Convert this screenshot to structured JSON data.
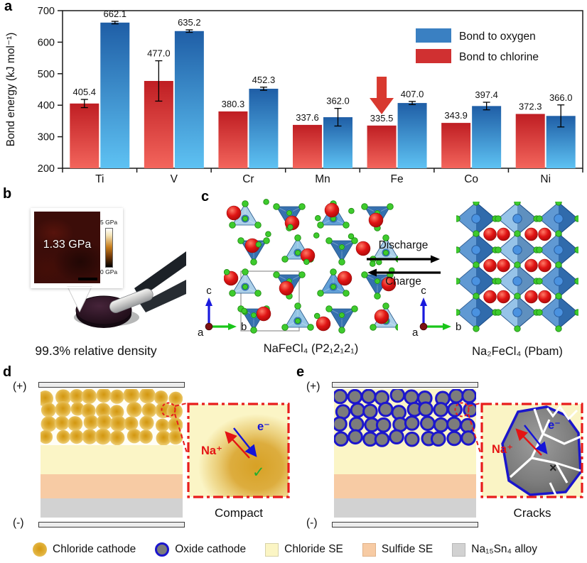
{
  "panel_labels": {
    "a": "a",
    "b": "b",
    "c": "c",
    "d": "d",
    "e": "e"
  },
  "chart_data": {
    "type": "bar",
    "title": "",
    "xlabel": "",
    "ylabel": "Bond energy (kJ mol⁻¹)",
    "ylim": [
      200,
      700
    ],
    "yticks": [
      200,
      300,
      400,
      500,
      600,
      700
    ],
    "categories": [
      "Ti",
      "V",
      "Cr",
      "Mn",
      "Fe",
      "Co",
      "Ni"
    ],
    "series": [
      {
        "name": "Bond to oxygen",
        "values": [
          662.1,
          635.2,
          452.3,
          362.0,
          407.0,
          397.4,
          366.0
        ],
        "errors": [
          4,
          4,
          5,
          28,
          5,
          12,
          35
        ],
        "legend_color": "#3a80c2",
        "bar_top": "#1f5ea6",
        "bar_bottom": "#5ec2f3"
      },
      {
        "name": "Bond to chlorine",
        "values": [
          405.4,
          477.0,
          380.3,
          337.6,
          335.5,
          343.9,
          372.3
        ],
        "errors": [
          13,
          64,
          0,
          0,
          0,
          0,
          0
        ],
        "legend_color": "#d03031",
        "bar_top": "#bf1e23",
        "bar_bottom": "#f3655c"
      }
    ],
    "annotation": {
      "type": "down-arrow",
      "category": "Fe",
      "series": "Bond to chlorine",
      "color": "#d8392f"
    },
    "legend_position": "top-right",
    "grid": false
  },
  "panel_b": {
    "inset_value": "1.33 GPa",
    "colorbar_top": "5 GPa",
    "colorbar_bottom": "0 GPa",
    "caption": "99.3% relative density"
  },
  "panel_c": {
    "discharge_label": "Discharge",
    "charge_label": "Charge",
    "left_caption": "NaFeCl₄ (P2₁2₁2₁)",
    "right_caption": "Na₂FeCl₄ (Pbam)",
    "axis": {
      "a": "a",
      "b": "b",
      "c": "c"
    }
  },
  "panel_d": {
    "positive_label": "(+)",
    "negative_label": "(-)",
    "ion_label": "Na⁺",
    "electron_label": "e⁻",
    "status_mark": "✓",
    "caption": "Compact"
  },
  "panel_e": {
    "positive_label": "(+)",
    "negative_label": "(-)",
    "ion_label": "Na⁺",
    "electron_label": "e⁻",
    "status_mark": "×",
    "caption": "Cracks"
  },
  "legend": {
    "items": [
      {
        "label": "Chloride cathode",
        "swatch": "gold-circle"
      },
      {
        "label": "Oxide cathode",
        "swatch": "grey-circle-blue-ring"
      },
      {
        "label": "Chloride SE",
        "swatch": "pale-yellow-square"
      },
      {
        "label": "Sulfide SE",
        "swatch": "peach-square"
      },
      {
        "label": "Na₁₅Sn₄ alloy",
        "swatch": "grey-square"
      }
    ]
  }
}
